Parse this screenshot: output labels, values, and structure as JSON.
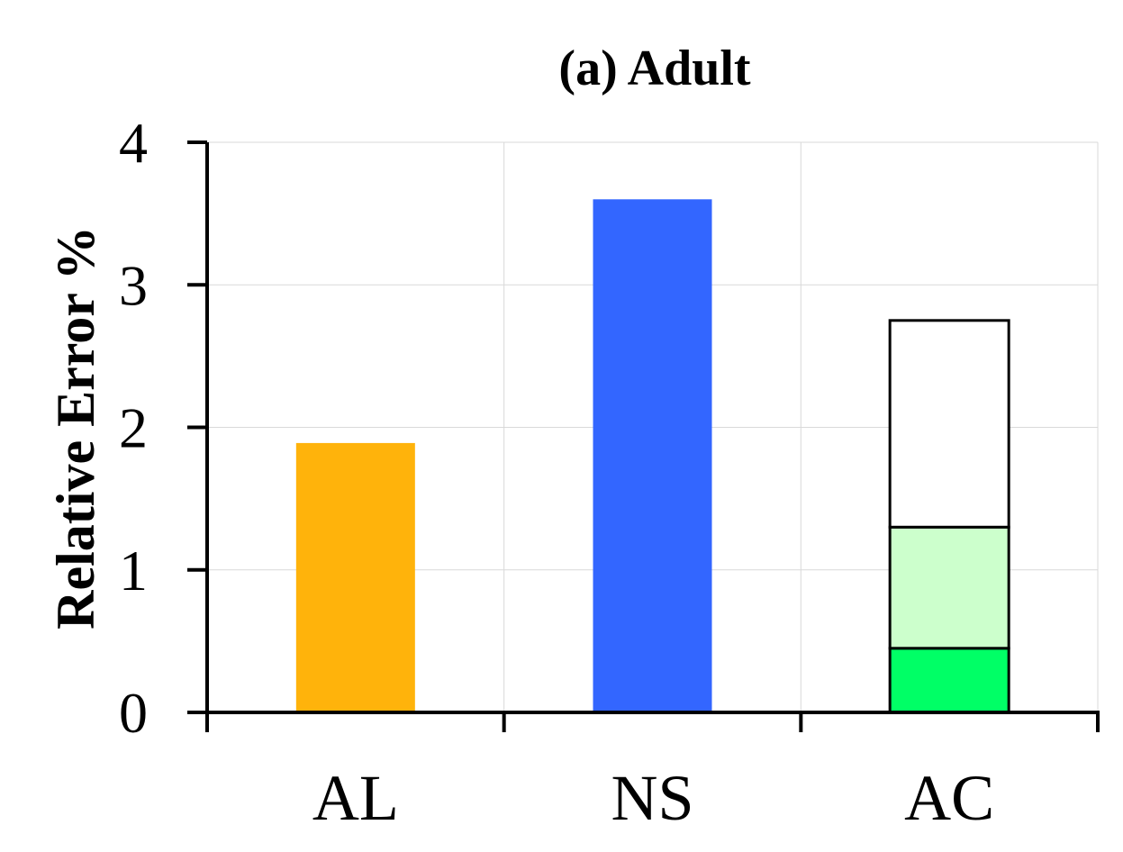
{
  "chart_data": {
    "type": "bar",
    "title": "(a) Adult",
    "xlabel": "",
    "ylabel": "Relative Error %",
    "ylim": [
      0,
      4
    ],
    "yticks": [
      "0",
      "1",
      "2",
      "3",
      "4"
    ],
    "grid": true,
    "categories": [
      "AL",
      "NS",
      "AC"
    ],
    "bars": [
      {
        "category": "AL",
        "segments": [
          {
            "value": 1.89,
            "color": "#FFB30B",
            "outlined": false
          }
        ]
      },
      {
        "category": "NS",
        "segments": [
          {
            "value": 3.6,
            "color": "#3366FF",
            "outlined": false
          }
        ]
      },
      {
        "category": "AC",
        "segments": [
          {
            "value": 0.45,
            "color": "#00FF66",
            "outlined": true
          },
          {
            "value": 0.85,
            "color": "#CCFFCC",
            "outlined": true
          },
          {
            "value": 1.45,
            "color": "#FFFFFF",
            "outlined": true
          }
        ]
      }
    ],
    "colors": {
      "axis": "#000000",
      "grid": "#D9D9D9",
      "outline": "#000000"
    }
  }
}
